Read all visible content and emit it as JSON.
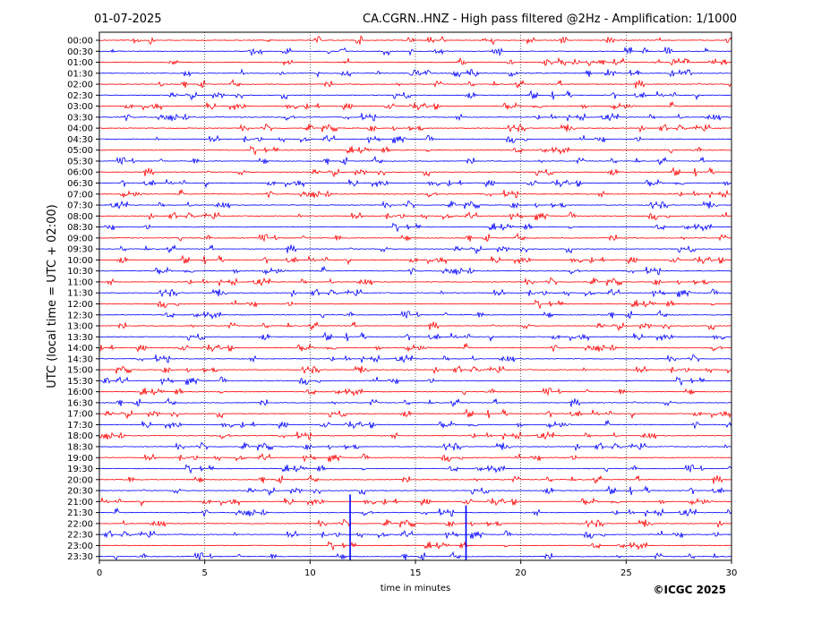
{
  "header": {
    "date": "01-07-2025",
    "title": "CA.CGRN..HNZ - High pass filtered @2Hz - Amplification: 1/1000"
  },
  "footer": {
    "copyright": "©ICGC 2025"
  },
  "colors": {
    "red_trace": "#ff0000",
    "blue_trace": "#0000ff",
    "frame": "#000000",
    "grid": "#000000"
  },
  "chart_data": {
    "type": "line",
    "title": "CA.CGRN..HNZ - High pass filtered @2Hz - Amplification: 1/1000",
    "xlabel": "time in minutes",
    "ylabel": "UTC (local time = UTC + 02:00)",
    "xlim": [
      0,
      30
    ],
    "xticks": [
      "0",
      "5",
      "10",
      "15",
      "20",
      "25",
      "30"
    ],
    "vertical_gridlines_at": [
      5,
      10,
      15,
      20,
      25
    ],
    "grid": "dotted vertical",
    "rows": [
      "00:00",
      "00:30",
      "01:00",
      "01:30",
      "02:00",
      "02:30",
      "03:00",
      "03:30",
      "04:00",
      "04:30",
      "05:00",
      "05:30",
      "06:00",
      "06:30",
      "07:00",
      "07:30",
      "08:00",
      "08:30",
      "09:00",
      "09:30",
      "10:00",
      "10:30",
      "11:00",
      "11:30",
      "12:00",
      "12:30",
      "13:00",
      "13:30",
      "14:00",
      "14:30",
      "15:00",
      "15:30",
      "16:00",
      "16:30",
      "17:00",
      "17:30",
      "18:00",
      "18:30",
      "19:00",
      "19:30",
      "20:00",
      "20:30",
      "21:00",
      "21:30",
      "22:00",
      "22:30",
      "23:00",
      "23:30"
    ],
    "row_colors": "alternating red (on the hour) and blue (on the half hour)",
    "trace_end_minute_last_row": 30,
    "notable_spikes": [
      {
        "row": "21:00",
        "minute": 11.9
      },
      {
        "row": "21:30",
        "minute": 17.4
      }
    ]
  }
}
